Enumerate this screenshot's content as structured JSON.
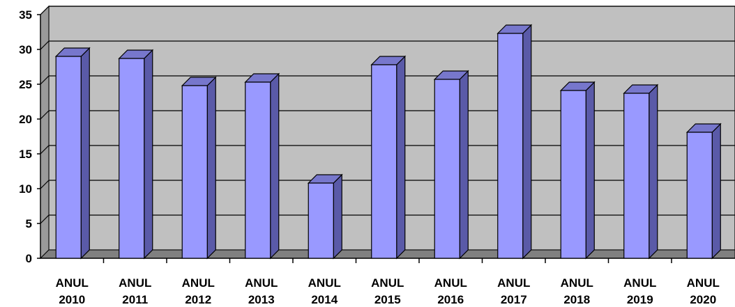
{
  "chart_data": {
    "type": "bar",
    "style": "3d-column",
    "categories": [
      [
        "ANUL",
        "2010"
      ],
      [
        "ANUL",
        "2011"
      ],
      [
        "ANUL",
        "2012"
      ],
      [
        "ANUL",
        "2013"
      ],
      [
        "ANUL",
        "2014"
      ],
      [
        "ANUL",
        "2015"
      ],
      [
        "ANUL",
        "2016"
      ],
      [
        "ANUL",
        "2017"
      ],
      [
        "ANUL",
        "2018"
      ],
      [
        "ANUL",
        "2019"
      ],
      [
        "ANUL",
        "2020"
      ]
    ],
    "values": [
      29,
      28.7,
      24.8,
      25.3,
      10.8,
      27.8,
      25.7,
      32.3,
      24.1,
      23.7,
      18.1
    ],
    "ylim": [
      0,
      35
    ],
    "yticks": [
      0,
      5,
      10,
      15,
      20,
      25,
      30,
      35
    ],
    "grid": true,
    "legend": "none",
    "title": "",
    "xlabel": "",
    "ylabel": "",
    "colors": {
      "bar_front": "#9999ff",
      "bar_side": "#5a5aa8",
      "bar_top": "#7777cc",
      "bar_outline": "#000000",
      "wall": "#c0c0c0",
      "side_wall": "#9a9a9a",
      "floor": "#808080",
      "gridline": "#000000"
    }
  }
}
